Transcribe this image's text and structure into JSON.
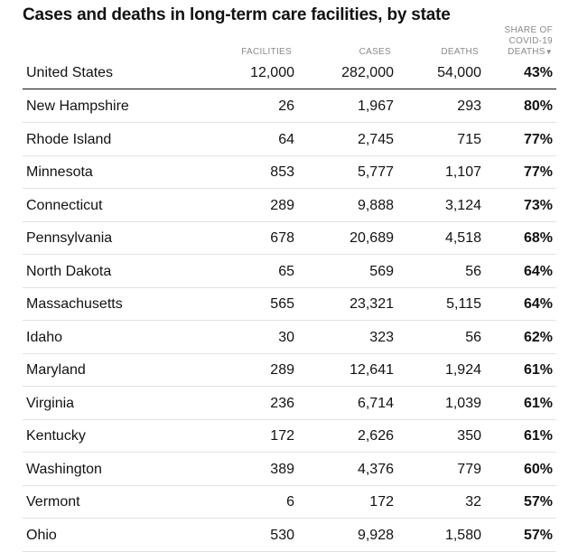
{
  "chart_data": {
    "type": "table",
    "title": "Cases and deaths in long-term care facilities, by state",
    "columns": {
      "facilities": "FACILITIES",
      "cases": "CASES",
      "deaths": "DEATHS",
      "share": "SHARE OF COVID-19 DEATHS",
      "sort_indicator": "▼"
    },
    "summary": {
      "name": "United States",
      "facilities": "12,000",
      "cases": "282,000",
      "deaths": "54,000",
      "share": "43%"
    },
    "rows": [
      {
        "name": "New Hampshire",
        "facilities": "26",
        "cases": "1,967",
        "deaths": "293",
        "share": "80%"
      },
      {
        "name": "Rhode Island",
        "facilities": "64",
        "cases": "2,745",
        "deaths": "715",
        "share": "77%"
      },
      {
        "name": "Minnesota",
        "facilities": "853",
        "cases": "5,777",
        "deaths": "1,107",
        "share": "77%"
      },
      {
        "name": "Connecticut",
        "facilities": "289",
        "cases": "9,888",
        "deaths": "3,124",
        "share": "73%"
      },
      {
        "name": "Pennsylvania",
        "facilities": "678",
        "cases": "20,689",
        "deaths": "4,518",
        "share": "68%"
      },
      {
        "name": "North Dakota",
        "facilities": "65",
        "cases": "569",
        "deaths": "56",
        "share": "64%"
      },
      {
        "name": "Massachusetts",
        "facilities": "565",
        "cases": "23,321",
        "deaths": "5,115",
        "share": "64%"
      },
      {
        "name": "Idaho",
        "facilities": "30",
        "cases": "323",
        "deaths": "56",
        "share": "62%"
      },
      {
        "name": "Maryland",
        "facilities": "289",
        "cases": "12,641",
        "deaths": "1,924",
        "share": "61%"
      },
      {
        "name": "Virginia",
        "facilities": "236",
        "cases": "6,714",
        "deaths": "1,039",
        "share": "61%"
      },
      {
        "name": "Kentucky",
        "facilities": "172",
        "cases": "2,626",
        "deaths": "350",
        "share": "61%"
      },
      {
        "name": "Washington",
        "facilities": "389",
        "cases": "4,376",
        "deaths": "779",
        "share": "60%"
      },
      {
        "name": "Vermont",
        "facilities": "6",
        "cases": "172",
        "deaths": "32",
        "share": "57%"
      },
      {
        "name": "Ohio",
        "facilities": "530",
        "cases": "9,928",
        "deaths": "1,580",
        "share": "57%"
      }
    ]
  }
}
